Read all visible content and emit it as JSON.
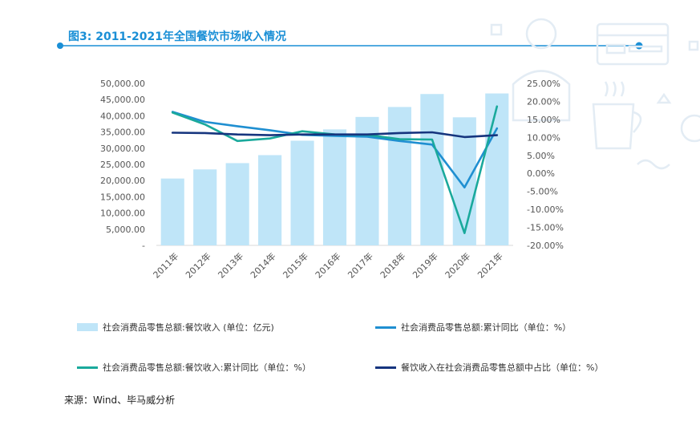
{
  "title": "图3: 2011-2021年全国餐饮市场收入情况",
  "source": "来源：Wind、毕马威分析",
  "chart_data": {
    "type": "bar",
    "categories": [
      "2011年",
      "2012年",
      "2013年",
      "2014年",
      "2015年",
      "2016年",
      "2017年",
      "2018年",
      "2019年",
      "2020年",
      "2021年"
    ],
    "y_left": {
      "ylim": [
        0,
        50000
      ],
      "ticks": [
        "-",
        "5,000.00",
        "10,000.00",
        "15,000.00",
        "20,000.00",
        "25,000.00",
        "30,000.00",
        "35,000.00",
        "40,000.00",
        "45,000.00",
        "50,000.00"
      ]
    },
    "y_right": {
      "ylim": [
        -20,
        25
      ],
      "ticks": [
        "-20.00%",
        "-15.00%",
        "-10.00%",
        "-5.00%",
        "0.00%",
        "5.00%",
        "10.00%",
        "15.00%",
        "20.00%",
        "25.00%"
      ]
    },
    "series": [
      {
        "name": "社会消费品零售总额:餐饮收入 (单位：亿元)",
        "type": "bar",
        "axis": "left",
        "color": "#bfe5f8",
        "values": [
          20635,
          23448,
          25392,
          27860,
          32310,
          35799,
          39644,
          42716,
          46721,
          39527,
          46895
        ]
      },
      {
        "name": "社会消费品零售总额:累计同比（单位：%）",
        "type": "line",
        "axis": "right",
        "color": "#1f8fd1",
        "values": [
          17.1,
          14.3,
          13.1,
          12.0,
          10.7,
          10.4,
          10.2,
          9.0,
          8.0,
          -3.9,
          12.5
        ]
      },
      {
        "name": "社会消费品零售总额:餐饮收入:累计同比（单位：%）",
        "type": "line",
        "axis": "right",
        "color": "#1aa99c",
        "values": [
          16.9,
          13.6,
          9.0,
          9.7,
          11.7,
          10.8,
          10.7,
          9.5,
          9.4,
          -16.6,
          18.6
        ]
      },
      {
        "name": "餐饮收入在社会消费品零售总额中占比（单位：%）",
        "type": "line",
        "axis": "right",
        "color": "#16357e",
        "values": [
          11.3,
          11.2,
          10.8,
          10.6,
          10.8,
          10.8,
          10.8,
          11.2,
          11.4,
          10.1,
          10.6
        ]
      }
    ],
    "grid": false,
    "legend": "bottom"
  }
}
